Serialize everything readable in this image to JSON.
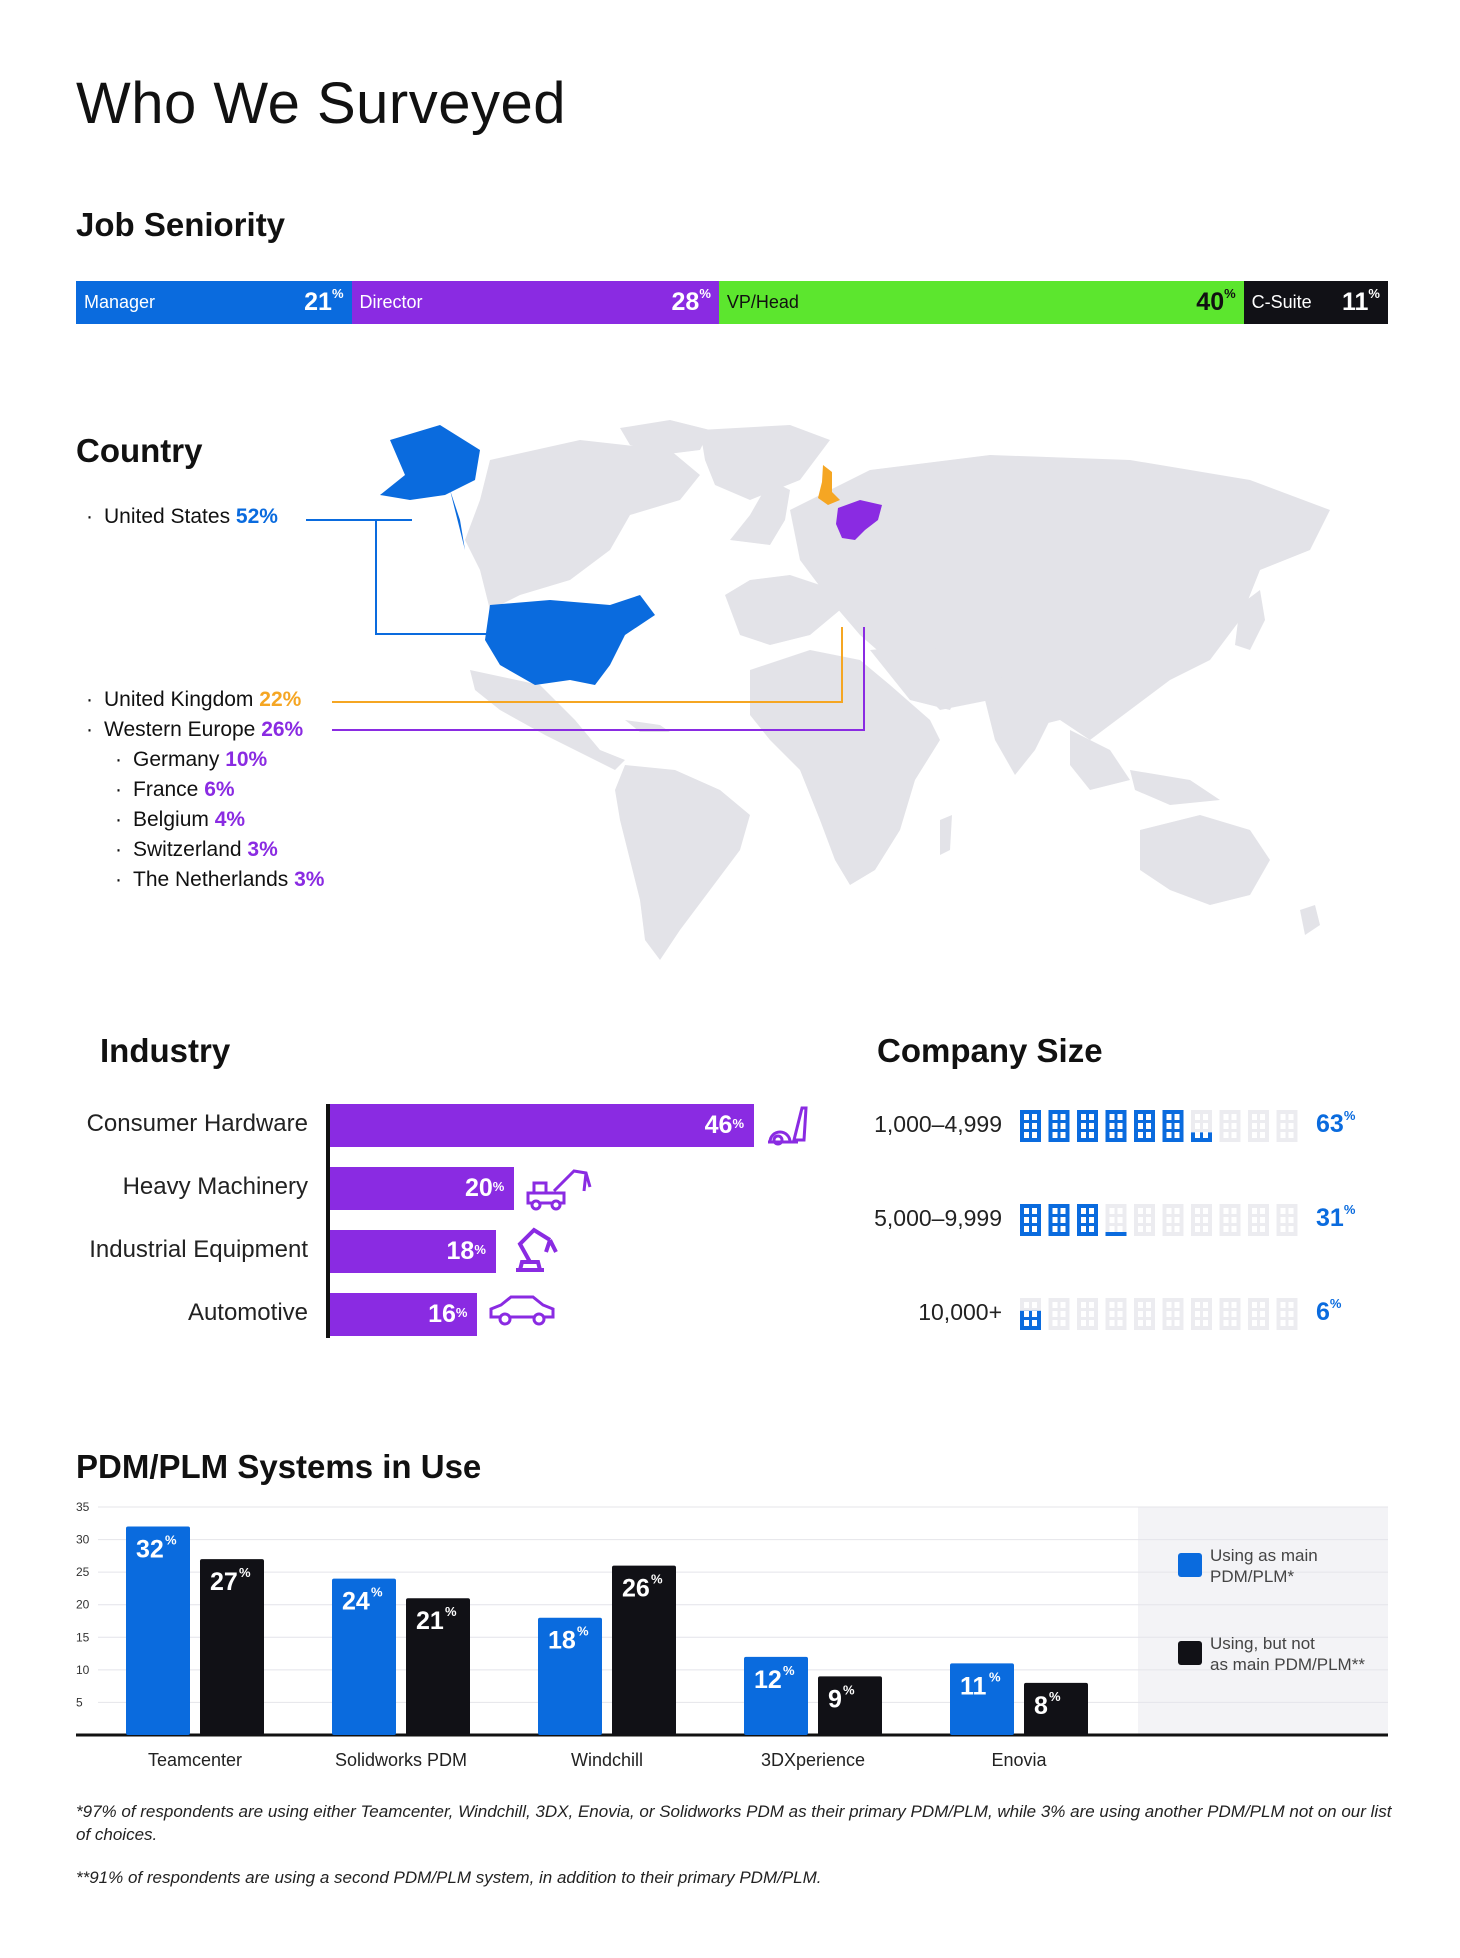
{
  "title": "Who We Surveyed",
  "job_seniority": {
    "title": "Job Seniority",
    "segments": [
      {
        "label": "Manager",
        "value": 21,
        "pct_label": "21",
        "color": "#0a6bde",
        "text_color": "#ffffff"
      },
      {
        "label": "Director",
        "value": 28,
        "pct_label": "28",
        "color": "#8a2be2",
        "text_color": "#ffffff"
      },
      {
        "label": "VP/Head",
        "value": 40,
        "pct_label": "40",
        "color": "#5ce62e",
        "text_color": "#111111"
      },
      {
        "label": "C-Suite",
        "value": 11,
        "pct_label": "11",
        "color": "#111116",
        "text_color": "#ffffff"
      }
    ],
    "pct_symbol": "%"
  },
  "country": {
    "title": "Country",
    "items": [
      {
        "bullet": "·",
        "name": "United States",
        "pct": "52%",
        "color": "#0a6bde",
        "level": 0
      },
      {
        "bullet": "·",
        "name": "United Kingdom",
        "pct": "22%",
        "color": "#f5a623",
        "level": 0
      },
      {
        "bullet": "·",
        "name": "Western Europe",
        "pct": "26%",
        "color": "#8a2be2",
        "level": 0
      },
      {
        "bullet": "·",
        "name": "Germany",
        "pct": "10%",
        "color": "#8a2be2",
        "level": 1
      },
      {
        "bullet": "·",
        "name": "France",
        "pct": "6%",
        "color": "#8a2be2",
        "level": 1
      },
      {
        "bullet": "·",
        "name": "Belgium",
        "pct": "4%",
        "color": "#8a2be2",
        "level": 1
      },
      {
        "bullet": "·",
        "name": "Switzerland",
        "pct": "3%",
        "color": "#8a2be2",
        "level": 1
      },
      {
        "bullet": "·",
        "name": "The Netherlands",
        "pct": "3%",
        "color": "#8a2be2",
        "level": 1
      }
    ],
    "map_land_color": "#e3e3e8"
  },
  "industry": {
    "title": "Industry",
    "bars": [
      {
        "label": "Consumer Hardware",
        "value": 46,
        "icon": "vacuum-icon"
      },
      {
        "label": "Heavy Machinery",
        "value": 20,
        "icon": "crane-truck-icon"
      },
      {
        "label": "Industrial Equipment",
        "value": 18,
        "icon": "robot-arm-icon"
      },
      {
        "label": "Automotive",
        "value": 16,
        "icon": "car-icon"
      }
    ],
    "color": "#8a2be2",
    "pct_symbol": "%"
  },
  "company_size": {
    "title": "Company Size",
    "rows": [
      {
        "label": "1,000–4,999",
        "value": 63,
        "pct_label": "63"
      },
      {
        "label": "5,000–9,999",
        "value": 31,
        "pct_label": "31"
      },
      {
        "label": "10,000+",
        "value": 6,
        "pct_label": "6"
      }
    ],
    "icon": "building-icon",
    "active_color": "#0a6bde",
    "inactive_color": "#ececf0",
    "pct_symbol": "%"
  },
  "pdm": {
    "title": "PDM/PLM Systems in Use",
    "legend": {
      "main": "Using as main PDM/PLM*",
      "secondary": "Using, but not as main PDM/PLM**"
    },
    "footnotes": [
      "*97% of respondents are using either Teamcenter, Windchill, 3DX, Enovia, or Solidworks PDM as their primary PDM/PLM, while 3% are using another PDM/PLM not on our list of choices.",
      "**91% of respondents are using a second PDM/PLM system, in addition to their primary PDM/PLM."
    ]
  },
  "chart_data": {
    "type": "bar",
    "title": "PDM/PLM Systems in Use",
    "categories": [
      "Teamcenter",
      "Solidworks PDM",
      "Windchill",
      "3DXperience",
      "Enovia"
    ],
    "series": [
      {
        "name": "Using as main PDM/PLM*",
        "values": [
          32,
          24,
          18,
          12,
          11
        ],
        "color": "#0a6bde"
      },
      {
        "name": "Using, but not as main PDM/PLM**",
        "values": [
          27,
          21,
          26,
          9,
          8
        ],
        "color": "#111116"
      }
    ],
    "ylim": [
      0,
      35
    ],
    "yticks": [
      5,
      10,
      15,
      20,
      25,
      30,
      35
    ],
    "grid": true,
    "legend_position": "right",
    "pct_symbol": "%"
  }
}
